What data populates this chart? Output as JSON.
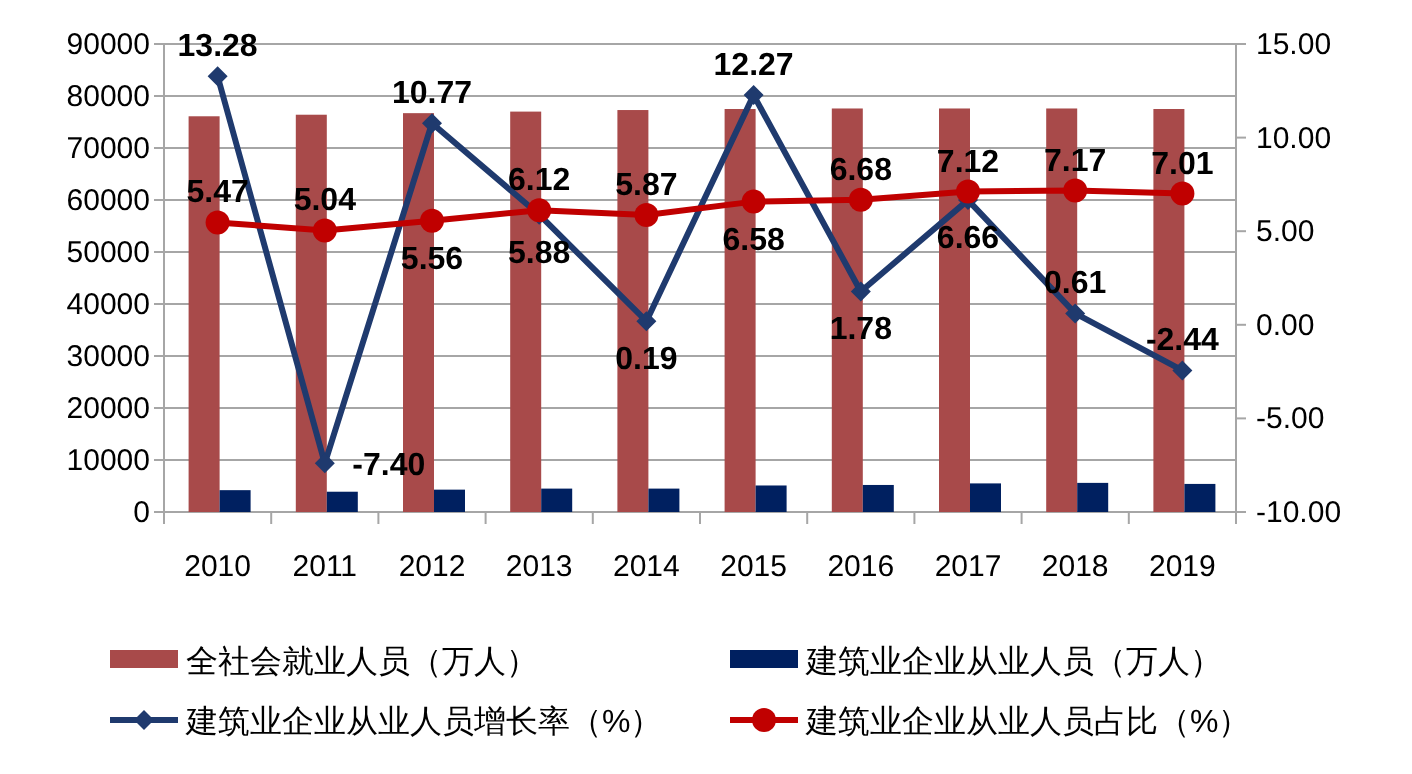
{
  "chart_data": {
    "type": "bar",
    "categories": [
      "2010",
      "2011",
      "2012",
      "2013",
      "2014",
      "2015",
      "2016",
      "2017",
      "2018",
      "2019"
    ],
    "series": [
      {
        "name": "全社会就业人员（万人）",
        "type": "bar",
        "color": "#a84a4a",
        "values": [
          76100,
          76400,
          76700,
          77000,
          77300,
          77500,
          77600,
          77600,
          77600,
          77500
        ]
      },
      {
        "name": "建筑业企业从业人员（万人）",
        "type": "bar",
        "color": "#002060",
        "values": [
          4200,
          3900,
          4300,
          4500,
          4500,
          5100,
          5200,
          5500,
          5600,
          5400
        ]
      },
      {
        "name": "建筑业企业从业人员增长率（%）",
        "type": "line",
        "axis": "y2",
        "color": "#1f3a6e",
        "marker": "diamond",
        "values": [
          13.28,
          -7.4,
          10.77,
          5.88,
          0.19,
          12.27,
          1.78,
          6.66,
          0.61,
          -2.44
        ],
        "value_labels": [
          "13.28",
          "-7.40",
          "10.77",
          "5.88",
          "0.19",
          "12.27",
          "1.78",
          "6.66",
          "0.61",
          "-2.44"
        ]
      },
      {
        "name": "建筑业企业从业人员占比（%）",
        "type": "line",
        "axis": "y2",
        "color": "#c00000",
        "marker": "circle",
        "values": [
          5.47,
          5.04,
          5.56,
          6.12,
          5.87,
          6.58,
          6.68,
          7.12,
          7.17,
          7.01
        ],
        "value_labels": [
          "5.47",
          "5.04",
          "5.56",
          "6.12",
          "5.87",
          "6.58",
          "6.68",
          "7.12",
          "7.17",
          "7.01"
        ]
      }
    ],
    "ylim": [
      0,
      90000
    ],
    "yticks": [
      0,
      10000,
      20000,
      30000,
      40000,
      50000,
      60000,
      70000,
      80000,
      90000
    ],
    "y2lim": [
      -10,
      15
    ],
    "y2ticks": [
      {
        "value": -10,
        "label": "-10.00"
      },
      {
        "value": -5,
        "label": "-5.00"
      },
      {
        "value": 0,
        "label": "0.00"
      },
      {
        "value": 5,
        "label": "5.00"
      },
      {
        "value": 10,
        "label": "10.00"
      },
      {
        "value": 15,
        "label": "15.00"
      }
    ],
    "grid": "y",
    "legend": "bottom"
  }
}
